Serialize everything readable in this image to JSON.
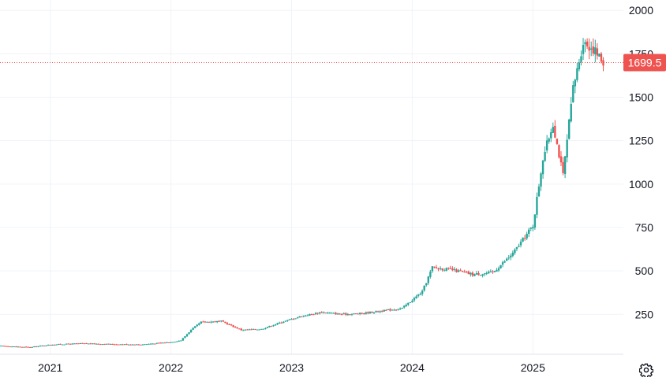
{
  "colors": {
    "up": "#26a69a",
    "down": "#ef5350",
    "grid": "#f0f3fa",
    "axis_text": "#131722",
    "price_line": "#ef5350",
    "price_label_bg": "#ef5350"
  },
  "settings_icon": "gear-icon",
  "chart_data": {
    "type": "candlestick",
    "x_ticks": [
      "2021",
      "2022",
      "2023",
      "2024",
      "2025"
    ],
    "y_ticks": [
      250,
      500,
      750,
      1000,
      1250,
      1500,
      1750,
      2000
    ],
    "ylim": [
      20,
      2060
    ],
    "xlim": [
      "2020-08",
      "2025-10"
    ],
    "grid": true,
    "last_price": 1699.5,
    "last_price_label": "1699.5",
    "trend_points": [
      [
        "2020-08",
        68
      ],
      [
        "2020-11",
        60
      ],
      [
        "2021-01",
        75
      ],
      [
        "2021-04",
        82
      ],
      [
        "2021-07",
        78
      ],
      [
        "2021-10",
        76
      ],
      [
        "2022-01",
        90
      ],
      [
        "2022-02",
        100
      ],
      [
        "2022-03",
        160
      ],
      [
        "2022-04",
        205
      ],
      [
        "2022-06",
        210
      ],
      [
        "2022-08",
        160
      ],
      [
        "2022-10",
        165
      ],
      [
        "2022-12",
        205
      ],
      [
        "2023-02",
        240
      ],
      [
        "2023-04",
        262
      ],
      [
        "2023-06",
        250
      ],
      [
        "2023-08",
        255
      ],
      [
        "2023-10",
        270
      ],
      [
        "2023-12",
        285
      ],
      [
        "2024-02",
        380
      ],
      [
        "2024-03",
        520
      ],
      [
        "2024-05",
        505
      ],
      [
        "2024-07",
        480
      ],
      [
        "2024-09",
        490
      ],
      [
        "2024-11",
        600
      ],
      [
        "2025-01",
        760
      ],
      [
        "2025-02",
        1150
      ],
      [
        "2025-03",
        1350
      ],
      [
        "2025-04",
        1050
      ],
      [
        "2025-05",
        1550
      ],
      [
        "2025-06",
        1820
      ],
      [
        "2025-07",
        1780
      ],
      [
        "2025-08",
        1699.5
      ]
    ]
  }
}
